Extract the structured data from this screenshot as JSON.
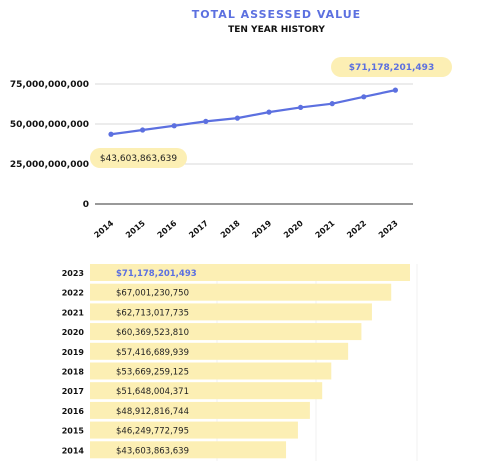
{
  "title": "TOTAL ASSESSED VALUE",
  "subtitle": "TEN YEAR HISTORY",
  "colors": {
    "accent": "#5c70e0",
    "highlight": "#fcefb4",
    "bar": "#fcefb4",
    "grid": "#cccccc"
  },
  "chart_data": [
    {
      "type": "line",
      "x": [
        "2014",
        "2015",
        "2016",
        "2017",
        "2018",
        "2019",
        "2020",
        "2021",
        "2022",
        "2023"
      ],
      "series": [
        {
          "values": [
            43603863639,
            46249772795,
            48912816744,
            51648004371,
            53669259125,
            57416689939,
            60369523810,
            62713017735,
            67001230750,
            71178201493
          ]
        }
      ],
      "ylim": [
        0,
        75000000000
      ],
      "yticks": [
        0,
        25000000000,
        50000000000,
        75000000000
      ],
      "ytick_labels": [
        "0",
        "25,000,000,000",
        "50,000,000,000",
        "75,000,000,000"
      ],
      "grid": "horizontal",
      "callouts": [
        {
          "x": "2014",
          "label": "$43,603,863,639"
        },
        {
          "x": "2023",
          "label": "$71,178,201,493"
        }
      ]
    },
    {
      "type": "bar",
      "orientation": "horizontal",
      "categories": [
        "2023",
        "2022",
        "2021",
        "2020",
        "2019",
        "2018",
        "2017",
        "2016",
        "2015",
        "2014"
      ],
      "values": [
        71178201493,
        67001230750,
        62713017735,
        60369523810,
        57416689939,
        53669259125,
        51648004371,
        48912816744,
        46249772795,
        43603863639
      ],
      "value_labels": [
        "$71,178,201,493",
        "$67,001,230,750",
        "$62,713,017,735",
        "$60,369,523,810",
        "$57,416,689,939",
        "$53,669,259,125",
        "$51,648,004,371",
        "$48,912,816,744",
        "$46,249,772,795",
        "$43,603,863,639"
      ]
    }
  ]
}
